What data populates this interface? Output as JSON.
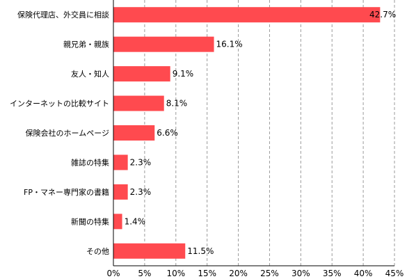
{
  "chart_data": {
    "type": "bar",
    "orientation": "horizontal",
    "categories": [
      "保険代理店、外交員に相談",
      "親兄弟・親族",
      "友人・知人",
      "インターネットの比較サイト",
      "保険会社のホームページ",
      "雑誌の特集",
      "FP・マネー専門家の書籍",
      "新聞の特集",
      "その他"
    ],
    "values": [
      42.7,
      16.1,
      9.1,
      8.1,
      6.6,
      2.3,
      2.3,
      1.4,
      11.5
    ],
    "value_labels": [
      "42.7%",
      "16.1%",
      "9.1%",
      "8.1%",
      "6.6%",
      "2.3%",
      "2.3%",
      "1.4%",
      "11.5%"
    ],
    "xlim": [
      0,
      45
    ],
    "xticks": [
      0,
      5,
      10,
      15,
      20,
      25,
      30,
      35,
      40,
      45
    ],
    "xtick_labels": [
      "0%",
      "5%",
      "10%",
      "15%",
      "20%",
      "25%",
      "30%",
      "35%",
      "40%",
      "45%"
    ],
    "grid": "vertical dashed",
    "bar_color": "#ff4a4f",
    "title": "",
    "xlabel": "",
    "ylabel": ""
  }
}
